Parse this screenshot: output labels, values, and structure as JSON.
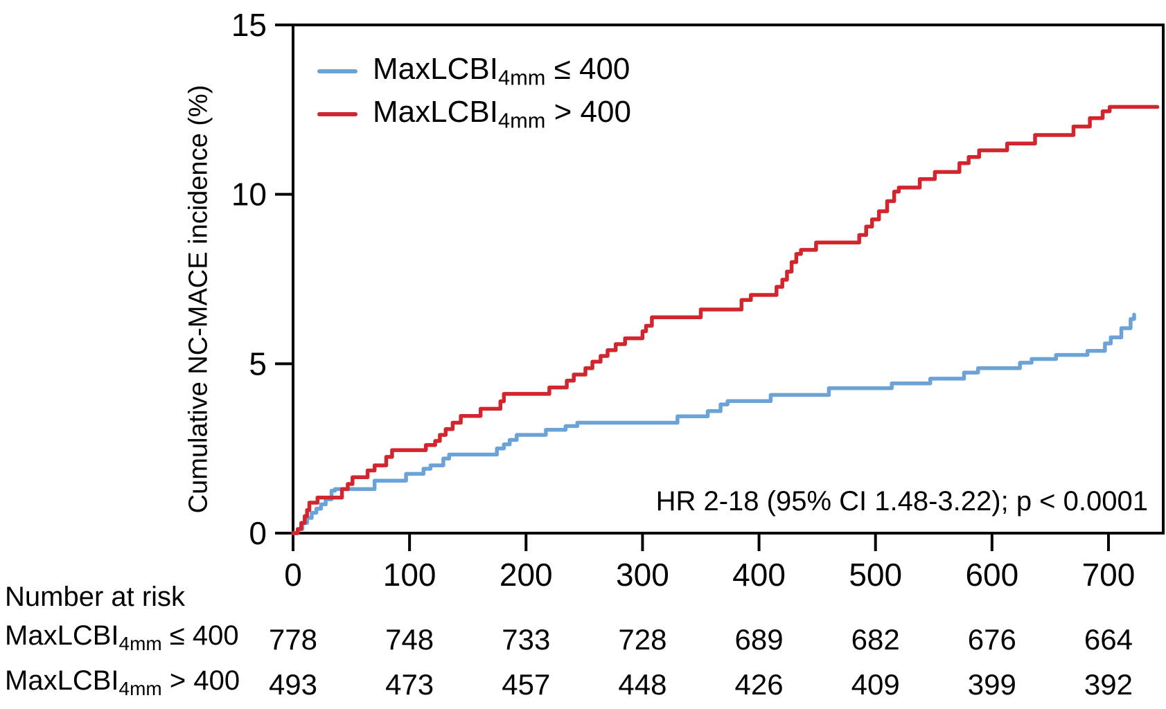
{
  "chart_data": {
    "type": "line",
    "variant": "kaplan_meier_cumulative_incidence_step_curves",
    "title": "",
    "xlabel": "",
    "ylabel": "Cumulative NC-MACE incidence (%)",
    "xlim": [
      0,
      747
    ],
    "ylim": [
      0,
      15
    ],
    "xticks": [
      0,
      100,
      200,
      300,
      400,
      500,
      600,
      700
    ],
    "yticks": [
      0,
      5,
      10,
      15
    ],
    "grid": false,
    "legend_position": "top-left-inside",
    "axis_color": "#000000",
    "annotation": "HR 2-18 (95% CI 1.48-3.22); p < 0.0001",
    "legend": [
      {
        "main": "MaxLCBI",
        "sub": "4mm",
        "rest": " ≤ 400",
        "color": "#6BA3D9"
      },
      {
        "main": "MaxLCBI",
        "sub": "4mm",
        "rest": " > 400",
        "color": "#D2262E"
      }
    ],
    "series": [
      {
        "name": "MaxLCBI4mm ≤ 400",
        "color": "#6BA3D9",
        "points": [
          [
            0,
            0
          ],
          [
            4,
            0.12
          ],
          [
            8,
            0.3
          ],
          [
            12,
            0.45
          ],
          [
            16,
            0.6
          ],
          [
            20,
            0.72
          ],
          [
            24,
            0.85
          ],
          [
            28,
            1.0
          ],
          [
            33,
            1.25
          ],
          [
            36,
            1.3
          ],
          [
            70,
            1.55
          ],
          [
            97,
            1.75
          ],
          [
            112,
            1.9
          ],
          [
            118,
            2.0
          ],
          [
            129,
            2.2
          ],
          [
            134,
            2.32
          ],
          [
            175,
            2.5
          ],
          [
            181,
            2.62
          ],
          [
            186,
            2.75
          ],
          [
            192,
            2.9
          ],
          [
            217,
            3.05
          ],
          [
            234,
            3.16
          ],
          [
            244,
            3.26
          ],
          [
            330,
            3.45
          ],
          [
            356,
            3.6
          ],
          [
            367,
            3.8
          ],
          [
            373,
            3.9
          ],
          [
            410,
            4.08
          ],
          [
            460,
            4.28
          ],
          [
            514,
            4.42
          ],
          [
            547,
            4.56
          ],
          [
            576,
            4.74
          ],
          [
            588,
            4.87
          ],
          [
            624,
            5.03
          ],
          [
            634,
            5.14
          ],
          [
            655,
            5.26
          ],
          [
            682,
            5.38
          ],
          [
            697,
            5.6
          ],
          [
            702,
            5.78
          ],
          [
            711,
            6.05
          ],
          [
            719,
            6.32
          ],
          [
            722,
            6.45
          ]
        ]
      },
      {
        "name": "MaxLCBI4mm > 400",
        "color": "#D2262E",
        "points": [
          [
            0,
            0
          ],
          [
            4,
            0.12
          ],
          [
            7,
            0.3
          ],
          [
            10,
            0.5
          ],
          [
            12,
            0.68
          ],
          [
            14,
            0.9
          ],
          [
            21,
            1.05
          ],
          [
            42,
            1.3
          ],
          [
            47,
            1.45
          ],
          [
            51,
            1.65
          ],
          [
            64,
            1.85
          ],
          [
            70,
            2.0
          ],
          [
            80,
            2.25
          ],
          [
            85,
            2.45
          ],
          [
            114,
            2.6
          ],
          [
            122,
            2.72
          ],
          [
            126,
            2.9
          ],
          [
            131,
            3.07
          ],
          [
            137,
            3.26
          ],
          [
            144,
            3.46
          ],
          [
            161,
            3.67
          ],
          [
            178,
            3.89
          ],
          [
            181,
            4.11
          ],
          [
            220,
            4.3
          ],
          [
            235,
            4.5
          ],
          [
            241,
            4.68
          ],
          [
            251,
            4.87
          ],
          [
            257,
            5.06
          ],
          [
            264,
            5.23
          ],
          [
            270,
            5.4
          ],
          [
            277,
            5.58
          ],
          [
            285,
            5.75
          ],
          [
            300,
            5.96
          ],
          [
            303,
            6.12
          ],
          [
            308,
            6.37
          ],
          [
            350,
            6.6
          ],
          [
            385,
            6.88
          ],
          [
            393,
            7.03
          ],
          [
            415,
            7.27
          ],
          [
            420,
            7.48
          ],
          [
            424,
            7.72
          ],
          [
            428,
            8.0
          ],
          [
            432,
            8.24
          ],
          [
            436,
            8.36
          ],
          [
            449,
            8.58
          ],
          [
            486,
            8.8
          ],
          [
            492,
            9.05
          ],
          [
            497,
            9.26
          ],
          [
            503,
            9.5
          ],
          [
            510,
            9.8
          ],
          [
            516,
            10.08
          ],
          [
            520,
            10.2
          ],
          [
            538,
            10.45
          ],
          [
            551,
            10.66
          ],
          [
            572,
            10.92
          ],
          [
            580,
            11.1
          ],
          [
            589,
            11.3
          ],
          [
            613,
            11.5
          ],
          [
            637,
            11.75
          ],
          [
            670,
            12.0
          ],
          [
            684,
            12.25
          ],
          [
            695,
            12.45
          ],
          [
            701,
            12.58
          ],
          [
            742,
            12.58
          ]
        ]
      }
    ],
    "risk_table": {
      "title": "Number at risk",
      "times": [
        0,
        100,
        200,
        300,
        400,
        500,
        600,
        700
      ],
      "rows": [
        {
          "main": "MaxLCBI",
          "sub": "4mm",
          "rest": " ≤ 400",
          "values": [
            "778",
            "748",
            "733",
            "728",
            "689",
            "682",
            "676",
            "664"
          ]
        },
        {
          "main": "MaxLCBI",
          "sub": "4mm",
          "rest": " > 400",
          "values": [
            "493",
            "473",
            "457",
            "448",
            "426",
            "409",
            "399",
            "392"
          ]
        }
      ]
    }
  }
}
